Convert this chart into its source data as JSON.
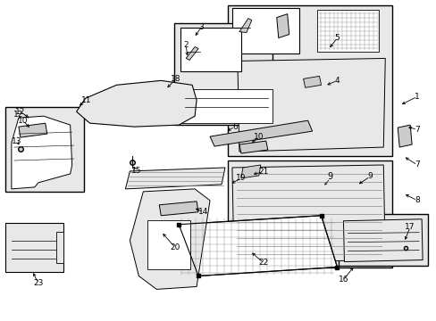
{
  "bg_color": "#ffffff",
  "fig_width": 4.89,
  "fig_height": 3.6,
  "dpi": 100,
  "black": "#000000",
  "gray": "#888888",
  "light_gray": "#e8e8e8",
  "mid_gray": "#cccccc",
  "box_fill": "#e8e8e8"
}
